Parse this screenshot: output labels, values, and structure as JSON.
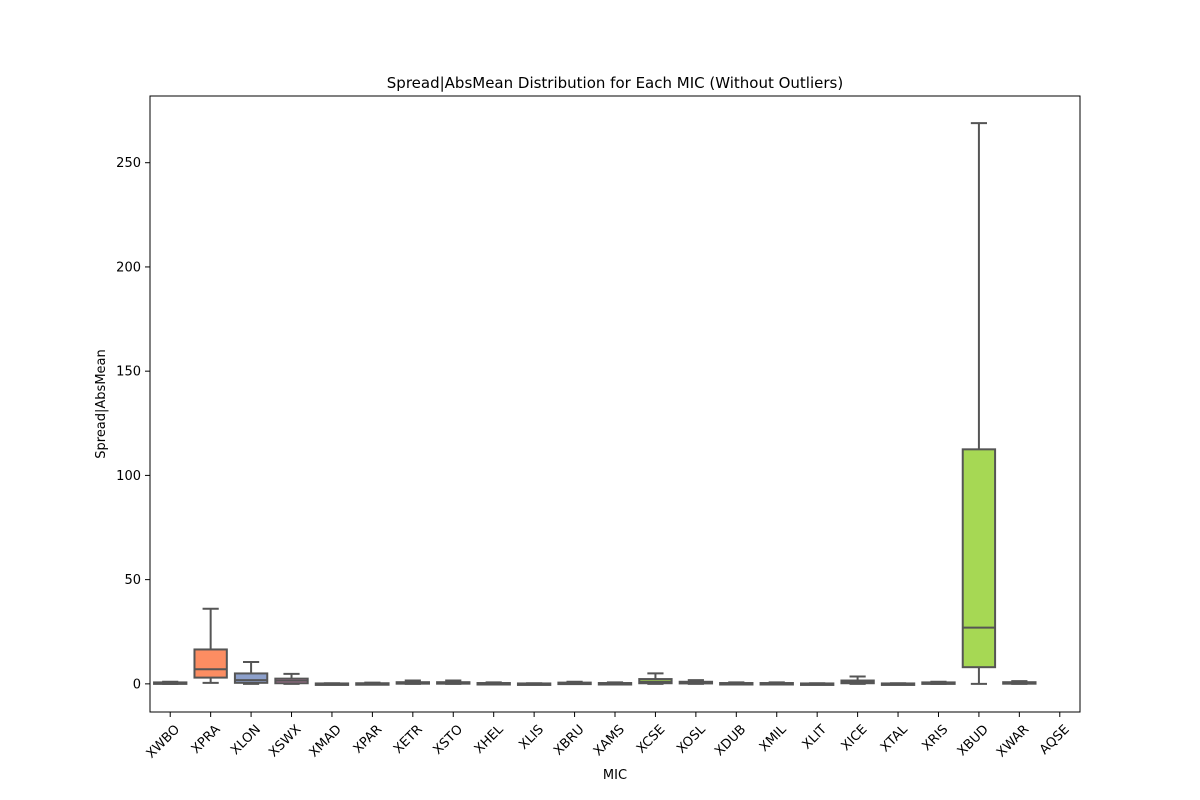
{
  "chart_data": {
    "type": "box",
    "title": "Spread|AbsMean Distribution for Each MIC (Without Outliers)",
    "xlabel": "MIC",
    "ylabel": "Spread|AbsMean",
    "ylim": [
      -13.5,
      282
    ],
    "yticks": [
      0,
      50,
      100,
      150,
      200,
      250
    ],
    "grid": false,
    "outliers_shown": false,
    "categories": [
      "XWBO",
      "XPRA",
      "XLON",
      "XSWX",
      "XMAD",
      "XPAR",
      "XETR",
      "XSTO",
      "XHEL",
      "XLIS",
      "XBRU",
      "XAMS",
      "XCSE",
      "XOSL",
      "XDUB",
      "XMIL",
      "XLIT",
      "XICE",
      "XTAL",
      "XRIS",
      "XBUD",
      "XWAR",
      "AQSE"
    ],
    "boxes": [
      {
        "category": "XWBO",
        "whisker_low": 0,
        "q1": 0.2,
        "median": 0.4,
        "q3": 0.7,
        "whisker_high": 1.0,
        "color": "#66c2a5"
      },
      {
        "category": "XPRA",
        "whisker_low": 0.5,
        "q1": 3.0,
        "median": 7.0,
        "q3": 16.5,
        "whisker_high": 36.0,
        "color": "#fc8d62"
      },
      {
        "category": "XLON",
        "whisker_low": 0,
        "q1": 0.5,
        "median": 1.8,
        "q3": 5.0,
        "whisker_high": 10.5,
        "color": "#8da0cb"
      },
      {
        "category": "XSWX",
        "whisker_low": 0,
        "q1": 0.3,
        "median": 1.5,
        "q3": 2.5,
        "whisker_high": 4.8,
        "color": "#e78ac3"
      },
      {
        "category": "XMAD",
        "whisker_low": 0,
        "q1": 0.05,
        "median": 0.1,
        "q3": 0.2,
        "whisker_high": 0.3,
        "color": "#a6d854"
      },
      {
        "category": "XPAR",
        "whisker_low": 0,
        "q1": 0.1,
        "median": 0.2,
        "q3": 0.3,
        "whisker_high": 0.6,
        "color": "#ffd92f"
      },
      {
        "category": "XETR",
        "whisker_low": 0,
        "q1": 0.2,
        "median": 0.5,
        "q3": 0.8,
        "whisker_high": 1.6,
        "color": "#e5c494"
      },
      {
        "category": "XSTO",
        "whisker_low": 0,
        "q1": 0.2,
        "median": 0.5,
        "q3": 0.8,
        "whisker_high": 1.6,
        "color": "#b3b3b3"
      },
      {
        "category": "XHEL",
        "whisker_low": 0,
        "q1": 0.1,
        "median": 0.2,
        "q3": 0.4,
        "whisker_high": 0.7,
        "color": "#66c2a5"
      },
      {
        "category": "XLIS",
        "whisker_low": 0,
        "q1": 0.05,
        "median": 0.1,
        "q3": 0.2,
        "whisker_high": 0.3,
        "color": "#fc8d62"
      },
      {
        "category": "XBRU",
        "whisker_low": 0,
        "q1": 0.2,
        "median": 0.4,
        "q3": 0.6,
        "whisker_high": 1.0,
        "color": "#8da0cb"
      },
      {
        "category": "XAMS",
        "whisker_low": 0,
        "q1": 0.1,
        "median": 0.2,
        "q3": 0.4,
        "whisker_high": 0.7,
        "color": "#e78ac3"
      },
      {
        "category": "XCSE",
        "whisker_low": 0,
        "q1": 0.3,
        "median": 1.0,
        "q3": 2.3,
        "whisker_high": 5.0,
        "color": "#a6d854"
      },
      {
        "category": "XOSL",
        "whisker_low": 0,
        "q1": 0.2,
        "median": 0.6,
        "q3": 1.0,
        "whisker_high": 1.8,
        "color": "#ffd92f"
      },
      {
        "category": "XDUB",
        "whisker_low": 0,
        "q1": 0.1,
        "median": 0.2,
        "q3": 0.4,
        "whisker_high": 0.7,
        "color": "#e5c494"
      },
      {
        "category": "XMIL",
        "whisker_low": 0,
        "q1": 0.1,
        "median": 0.2,
        "q3": 0.4,
        "whisker_high": 0.7,
        "color": "#b3b3b3"
      },
      {
        "category": "XLIT",
        "whisker_low": 0,
        "q1": 0.05,
        "median": 0.1,
        "q3": 0.2,
        "whisker_high": 0.3,
        "color": "#66c2a5"
      },
      {
        "category": "XICE",
        "whisker_low": 0,
        "q1": 0.3,
        "median": 0.9,
        "q3": 1.6,
        "whisker_high": 3.5,
        "color": "#fc8d62"
      },
      {
        "category": "XTAL",
        "whisker_low": 0,
        "q1": 0.05,
        "median": 0.1,
        "q3": 0.2,
        "whisker_high": 0.3,
        "color": "#8da0cb"
      },
      {
        "category": "XRIS",
        "whisker_low": 0,
        "q1": 0.2,
        "median": 0.4,
        "q3": 0.7,
        "whisker_high": 1.0,
        "color": "#e78ac3"
      },
      {
        "category": "XBUD",
        "whisker_low": 0,
        "q1": 8.0,
        "median": 27.0,
        "q3": 112.5,
        "whisker_high": 269.0,
        "color": "#a6d854"
      },
      {
        "category": "XWAR",
        "whisker_low": 0,
        "q1": 0.2,
        "median": 0.4,
        "q3": 0.8,
        "whisker_high": 1.3,
        "color": "#ffd92f"
      },
      {
        "category": "AQSE",
        "whisker_low": null,
        "q1": null,
        "median": null,
        "q3": null,
        "whisker_high": null,
        "color": "#e5c494"
      }
    ],
    "line_color": "#555555"
  }
}
